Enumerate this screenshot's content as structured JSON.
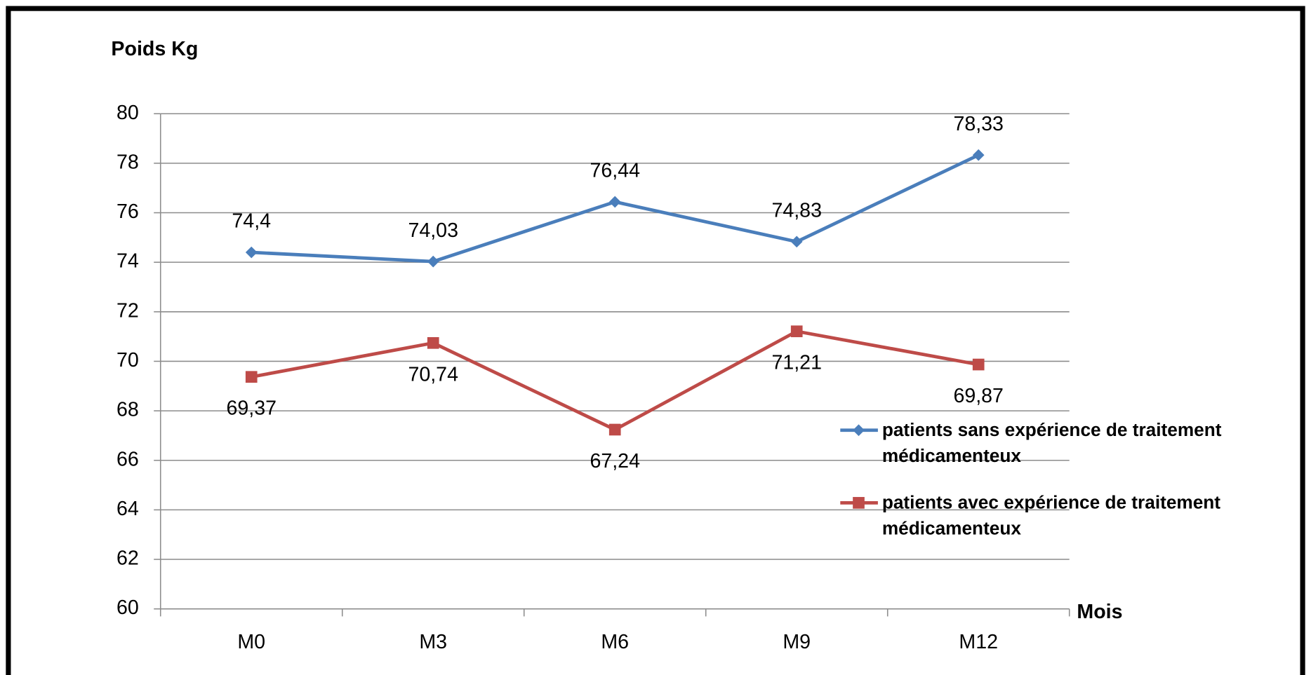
{
  "chart_data": {
    "type": "line",
    "y_label": "Poids Kg",
    "x_label": "Mois",
    "categories": [
      "M0",
      "M3",
      "M6",
      "M9",
      "M12"
    ],
    "series": [
      {
        "name": "patients sans expérience de traitement médicamenteux",
        "color": "#4a7ebb",
        "marker": "diamond",
        "values": [
          74.4,
          74.03,
          76.44,
          74.83,
          78.33
        ],
        "value_labels": [
          "74,4",
          "74,03",
          "76,44",
          "74,83",
          "78,33"
        ]
      },
      {
        "name": "patients avec expérience de traitement médicamenteux",
        "color": "#be4b48",
        "marker": "square",
        "values": [
          69.37,
          70.74,
          67.24,
          71.21,
          69.87
        ],
        "value_labels": [
          "69,37",
          "70,74",
          "67,24",
          "71,21",
          "69,87"
        ]
      }
    ],
    "ylim": [
      60,
      80
    ],
    "yticks": [
      60,
      62,
      64,
      66,
      68,
      70,
      72,
      74,
      76,
      78,
      80
    ],
    "grid": true,
    "legend": "right"
  }
}
